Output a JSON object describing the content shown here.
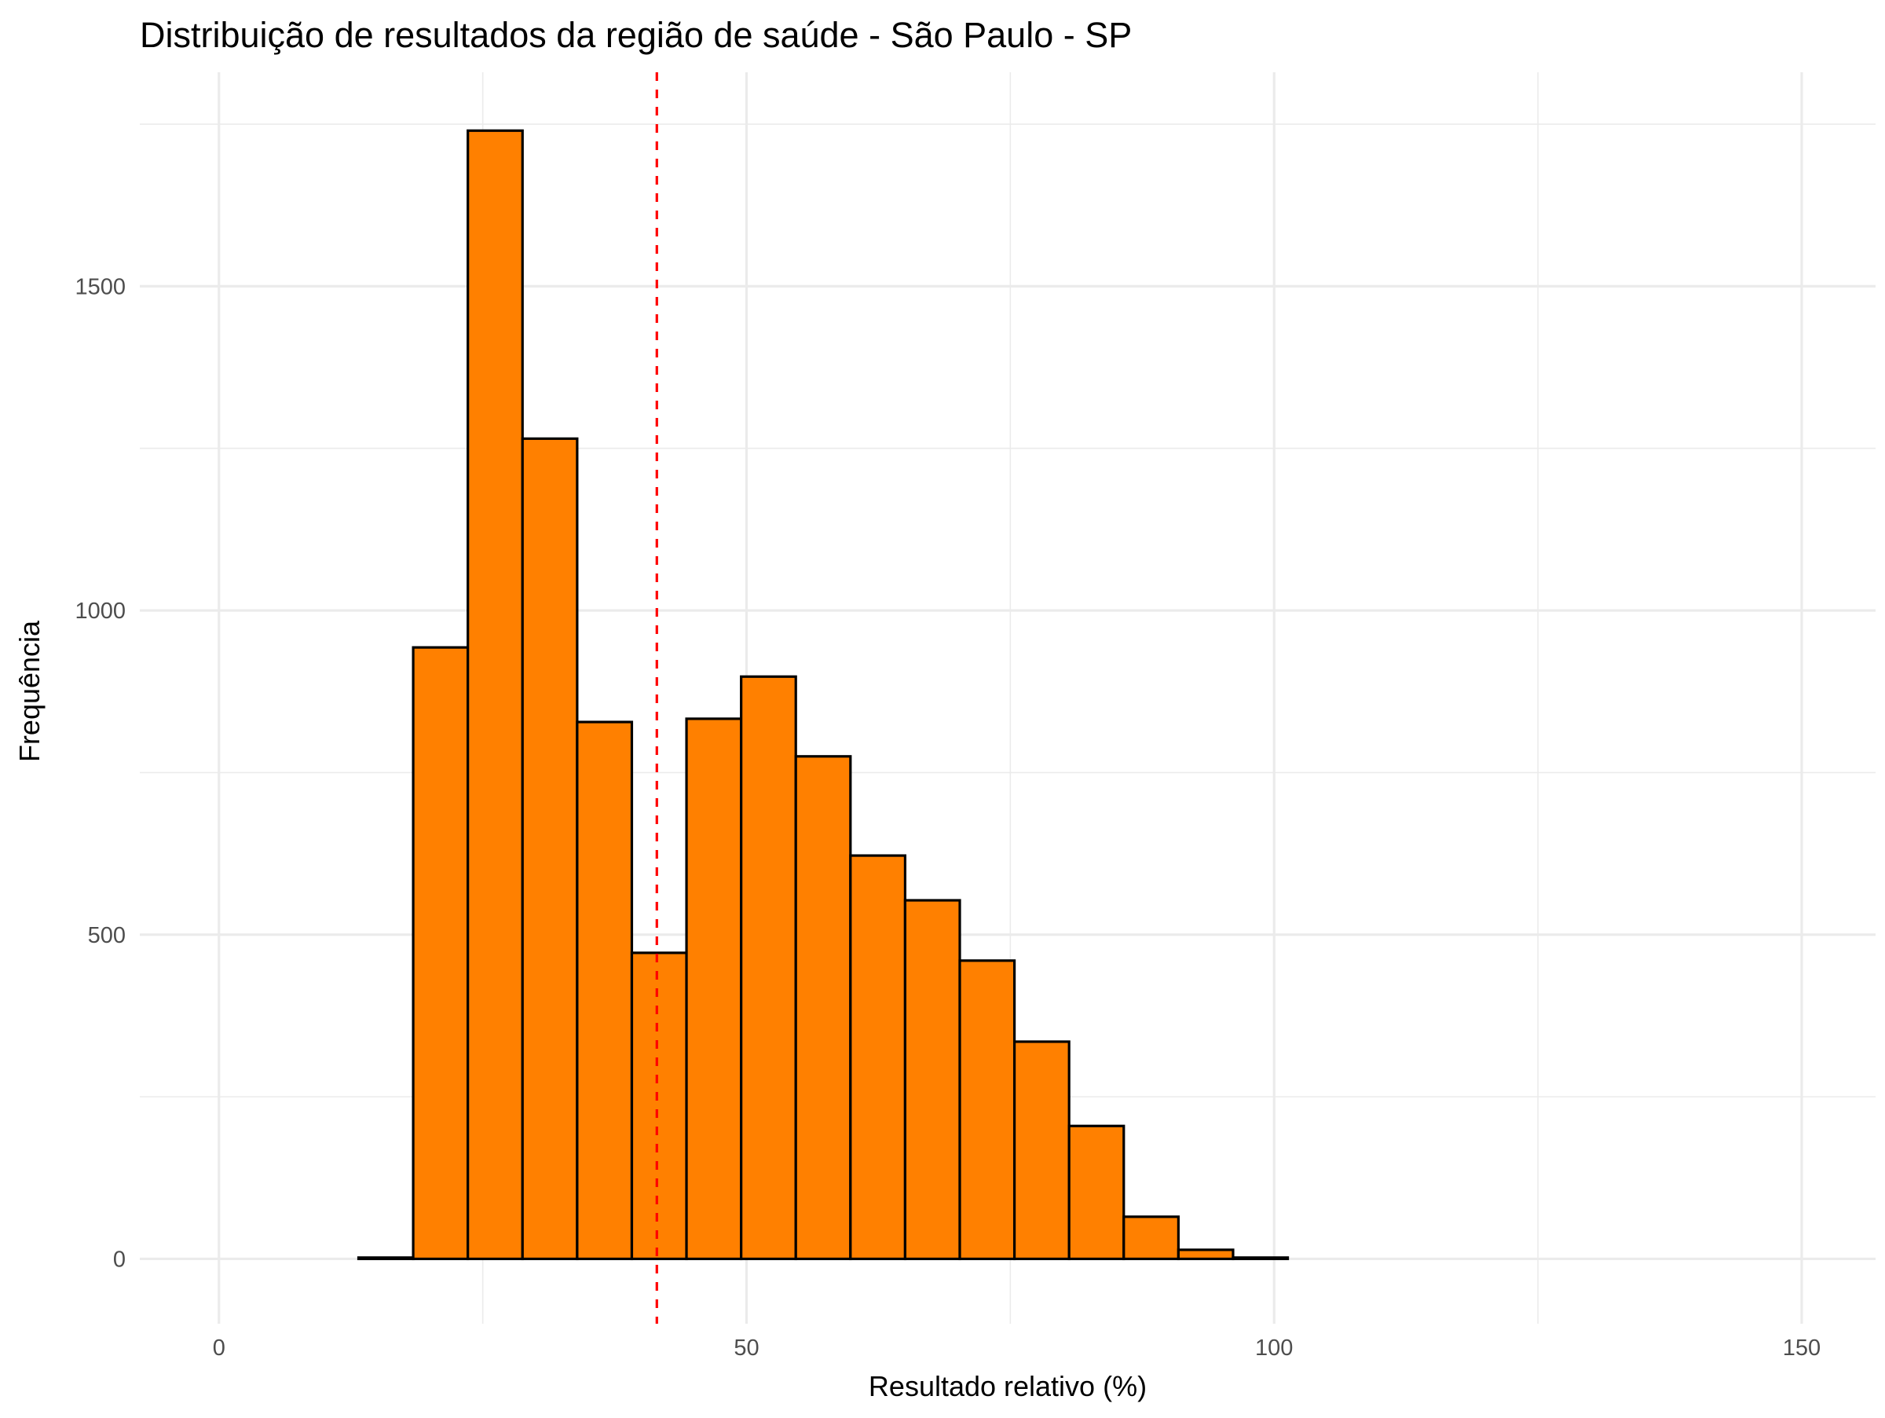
{
  "chart_data": {
    "type": "bar",
    "title": "Distribuição de resultados da região de saúde - São Paulo - SP",
    "xlabel": "Resultado relativo (%)",
    "ylabel": "Frequência",
    "xlim": [
      -7.5,
      157
    ],
    "ylim": [
      -100,
      1830
    ],
    "x_ticks": [
      0,
      50,
      100,
      150
    ],
    "x_minor_ticks": [
      25,
      75,
      125
    ],
    "y_ticks": [
      0,
      500,
      1000,
      1500
    ],
    "y_minor_ticks": [
      250,
      750,
      1250,
      1750
    ],
    "grid": true,
    "bin_width": 5.18,
    "bins": [
      {
        "x0": 2.87,
        "x1": 8.05,
        "count": 0
      },
      {
        "x0": 8.05,
        "x1": 13.23,
        "count": 0
      },
      {
        "x0": 13.23,
        "x1": 18.41,
        "count": 2
      },
      {
        "x0": 18.41,
        "x1": 23.59,
        "count": 943
      },
      {
        "x0": 23.59,
        "x1": 28.77,
        "count": 1740
      },
      {
        "x0": 28.77,
        "x1": 33.95,
        "count": 1265
      },
      {
        "x0": 33.95,
        "x1": 39.13,
        "count": 828
      },
      {
        "x0": 39.13,
        "x1": 44.31,
        "count": 472
      },
      {
        "x0": 44.31,
        "x1": 49.49,
        "count": 833
      },
      {
        "x0": 49.49,
        "x1": 54.67,
        "count": 898
      },
      {
        "x0": 54.67,
        "x1": 59.85,
        "count": 775
      },
      {
        "x0": 59.85,
        "x1": 65.03,
        "count": 622
      },
      {
        "x0": 65.03,
        "x1": 70.21,
        "count": 553
      },
      {
        "x0": 70.21,
        "x1": 75.39,
        "count": 460
      },
      {
        "x0": 75.39,
        "x1": 80.57,
        "count": 335
      },
      {
        "x0": 80.57,
        "x1": 85.75,
        "count": 205
      },
      {
        "x0": 85.75,
        "x1": 90.93,
        "count": 65
      },
      {
        "x0": 90.93,
        "x1": 96.11,
        "count": 14
      },
      {
        "x0": 96.11,
        "x1": 101.29,
        "count": 2
      },
      {
        "x0": 101.29,
        "x1": 106.47,
        "count": 0
      },
      {
        "x0": 106.47,
        "x1": 111.65,
        "count": 0
      },
      {
        "x0": 111.65,
        "x1": 116.83,
        "count": 0
      },
      {
        "x0": 116.83,
        "x1": 122.01,
        "count": 0
      },
      {
        "x0": 122.01,
        "x1": 127.19,
        "count": 0
      },
      {
        "x0": 127.19,
        "x1": 132.37,
        "count": 0
      },
      {
        "x0": 132.37,
        "x1": 137.55,
        "count": 0
      },
      {
        "x0": 137.55,
        "x1": 142.73,
        "count": 0
      },
      {
        "x0": 142.73,
        "x1": 147.91,
        "count": 0
      }
    ],
    "reference_line": {
      "x": 41.5,
      "style": "dashed"
    },
    "colors": {
      "bar_fill": "#FF8000",
      "bar_border": "#000000",
      "reference_line": "#FF0000",
      "grid": "#EBEBEB"
    }
  }
}
